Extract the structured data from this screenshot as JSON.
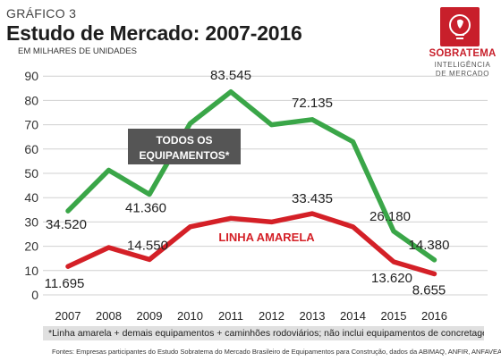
{
  "header": {
    "kicker": "GRÁFICO 3",
    "title": "Estudo de Mercado: 2007-2016",
    "subtitle": "EM MILHARES DE UNIDADES"
  },
  "logo": {
    "name": "SOBRATEMA",
    "line1": "INTELIGÊNCIA",
    "line2": "DE MERCADO"
  },
  "chart_data": {
    "type": "line",
    "x": [
      "2007",
      "2008",
      "2009",
      "2010",
      "2011",
      "2012",
      "2013",
      "2014",
      "2015",
      "2016"
    ],
    "ylim": [
      0,
      90
    ],
    "yticks": [
      0,
      10,
      20,
      30,
      40,
      50,
      60,
      70,
      80,
      90
    ],
    "grid": true,
    "series": [
      {
        "name": "TODOS OS EQUIPAMENTOS*",
        "color": "#3aa648",
        "values": [
          34.52,
          51.3,
          41.36,
          70.5,
          83.545,
          70.0,
          72.135,
          63.0,
          26.18,
          14.38
        ],
        "labels": [
          "34.520",
          "",
          "41.360",
          "",
          "83.545",
          "",
          "72.135",
          "",
          "26.180",
          "14.380"
        ]
      },
      {
        "name": "LINHA AMARELA",
        "color": "#d42027",
        "values": [
          11.695,
          19.5,
          14.55,
          28.0,
          31.5,
          30.0,
          33.435,
          28.0,
          13.62,
          8.655
        ],
        "labels": [
          "11.695",
          "",
          "14.550",
          "",
          "",
          "",
          "33.435",
          "",
          "13.620",
          "8.655"
        ]
      }
    ]
  },
  "labels": {
    "all_line1": "TODOS OS",
    "all_line2": "EQUIPAMENTOS*",
    "yellow": "LINHA AMARELA"
  },
  "footnote": "*Linha amarela + demais equipamentos + caminhões rodoviários;  não inclui equipamentos de concretagem",
  "source": "Fontes: Empresas participantes do Estudo Sobratema do Mercado Brasileiro de Equipamentos para Construção, dados da ABIMAQ, ANFIR, ANFAVEA"
}
